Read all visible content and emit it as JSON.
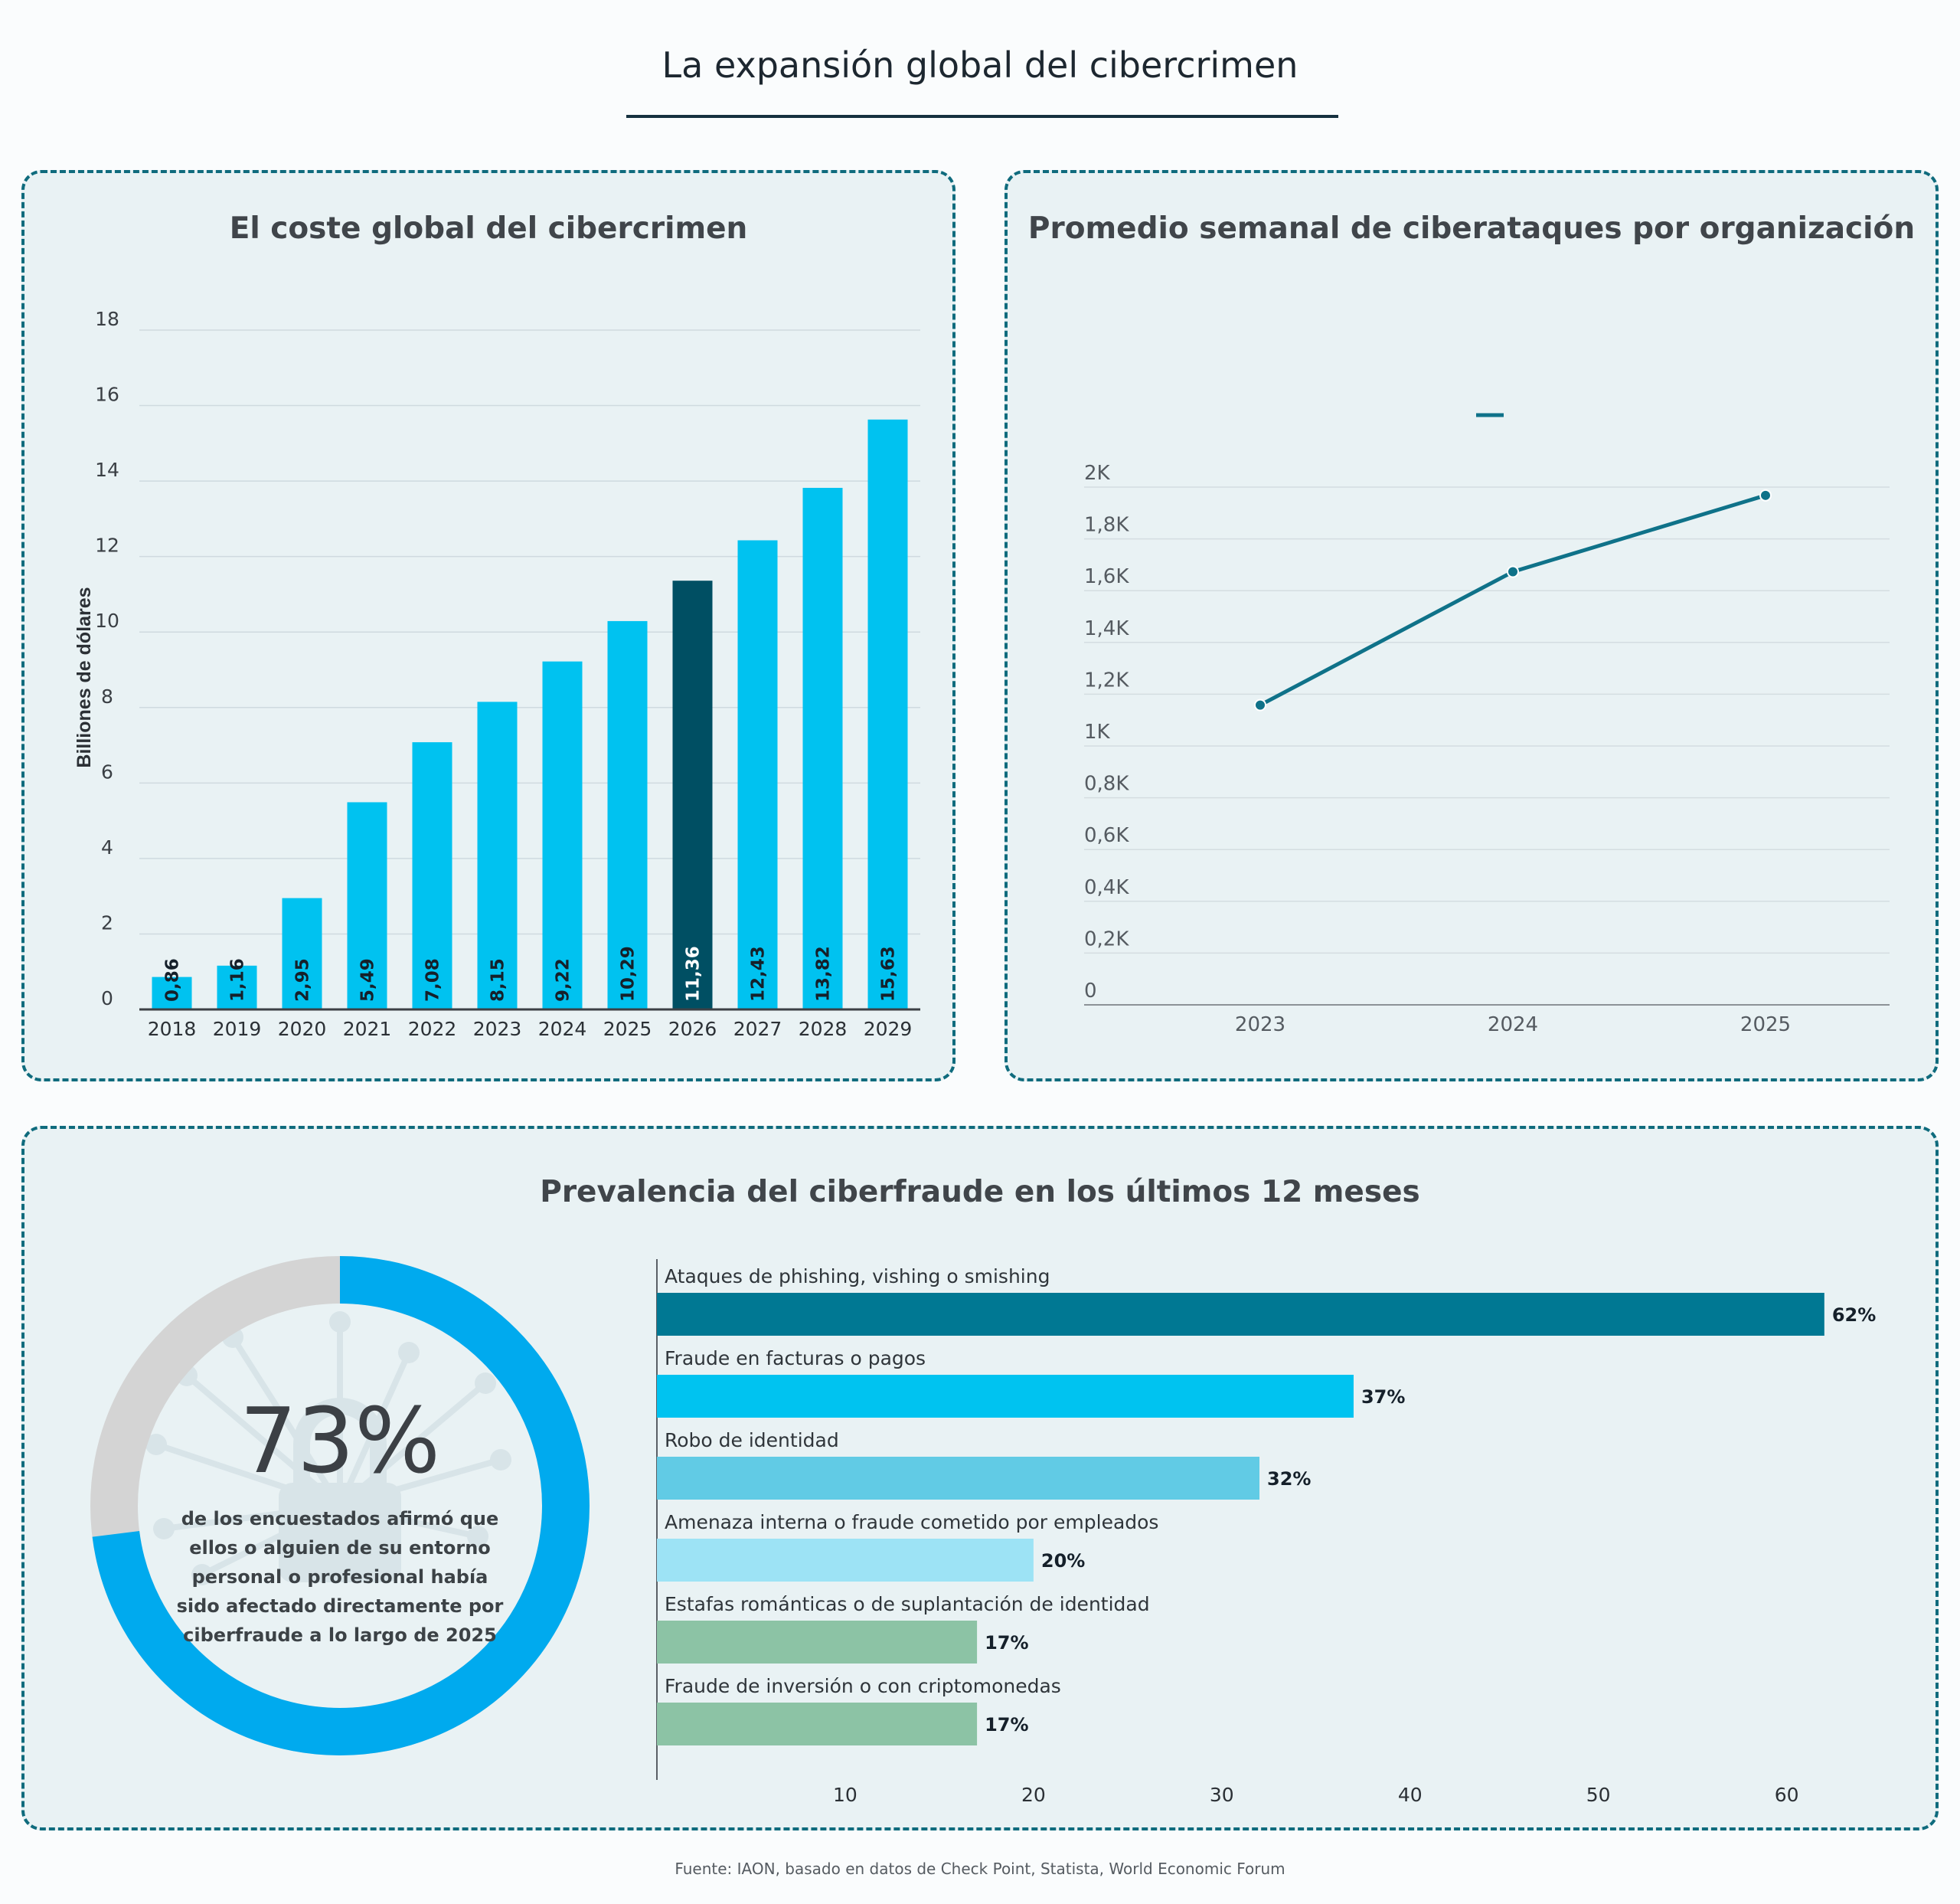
{
  "page": {
    "title": "La expansión global del cibercrimen",
    "source": "Fuente: IAON, basado en datos de Check Point, Statista, World Economic Forum"
  },
  "colors": {
    "bar_default": "#00c2f0",
    "bar_highlight": "#004f63",
    "line": "#0f7289",
    "donut_fill": "#00aaee",
    "donut_rest": "#d4d4d4"
  },
  "chart_data": [
    {
      "type": "bar",
      "title": "El coste global del cibercrimen",
      "ylabel": "Billiones de dólares",
      "xlabel": "",
      "categories": [
        "2018",
        "2019",
        "2020",
        "2021",
        "2022",
        "2023",
        "2024",
        "2025",
        "2026",
        "2027",
        "2028",
        "2029"
      ],
      "values": [
        0.86,
        1.16,
        2.95,
        5.49,
        7.08,
        8.15,
        9.22,
        10.29,
        11.36,
        12.43,
        13.82,
        15.63
      ],
      "value_labels": [
        "0,86",
        "1,16",
        "2,95",
        "5,49",
        "7,08",
        "8,15",
        "9,22",
        "10,29",
        "11,36",
        "12,43",
        "13,82",
        "15,63"
      ],
      "highlight_category": "2026",
      "ylim": [
        0,
        18
      ],
      "yticks": [
        0,
        2,
        4,
        6,
        8,
        10,
        12,
        14,
        16,
        18
      ],
      "grid": true
    },
    {
      "type": "line",
      "title": "Promedio semanal de ciberataques por organización",
      "x": [
        "2023",
        "2024",
        "2025"
      ],
      "values": [
        1158,
        1673,
        1968
      ],
      "ylim": [
        0,
        2000
      ],
      "yticks": [
        0,
        200,
        400,
        600,
        800,
        1000,
        1200,
        1400,
        1600,
        1800,
        2000
      ],
      "ytick_labels": [
        "0",
        "0,2K",
        "0,4K",
        "0,6K",
        "0,8K",
        "1K",
        "1,2K",
        "1,4K",
        "1,6K",
        "1,8K",
        "2K"
      ],
      "grid": true
    },
    {
      "type": "pie",
      "values": [
        73,
        27
      ],
      "center_label": "73%",
      "center_text": [
        "de los encuestados afirmó que",
        "ellos o alguien de su entorno",
        "personal o profesional había",
        "sido afectado directamente por",
        "ciberfraude a lo largo de 2025"
      ]
    },
    {
      "type": "bar",
      "orientation": "horizontal",
      "title": "Prevalencia del ciberfraude en los últimos 12 meses",
      "categories": [
        "Ataques de phishing, vishing o smishing",
        "Fraude en facturas o pagos",
        "Robo de identidad",
        "Amenaza interna o fraude cometido por empleados",
        "Estafas románticas o de suplantación de identidad",
        "Fraude de inversión o con criptomonedas"
      ],
      "values": [
        62,
        37,
        32,
        20,
        17,
        17
      ],
      "value_labels": [
        "62%",
        "37%",
        "32%",
        "20%",
        "17%",
        "17%"
      ],
      "bar_colors": [
        "#007893",
        "#00c3f0",
        "#61cbe5",
        "#9de3f5",
        "#8cc3a5",
        "#8cc3a5"
      ],
      "xlim": [
        0,
        64
      ],
      "xticks": [
        10,
        20,
        30,
        40,
        50,
        60
      ]
    }
  ]
}
